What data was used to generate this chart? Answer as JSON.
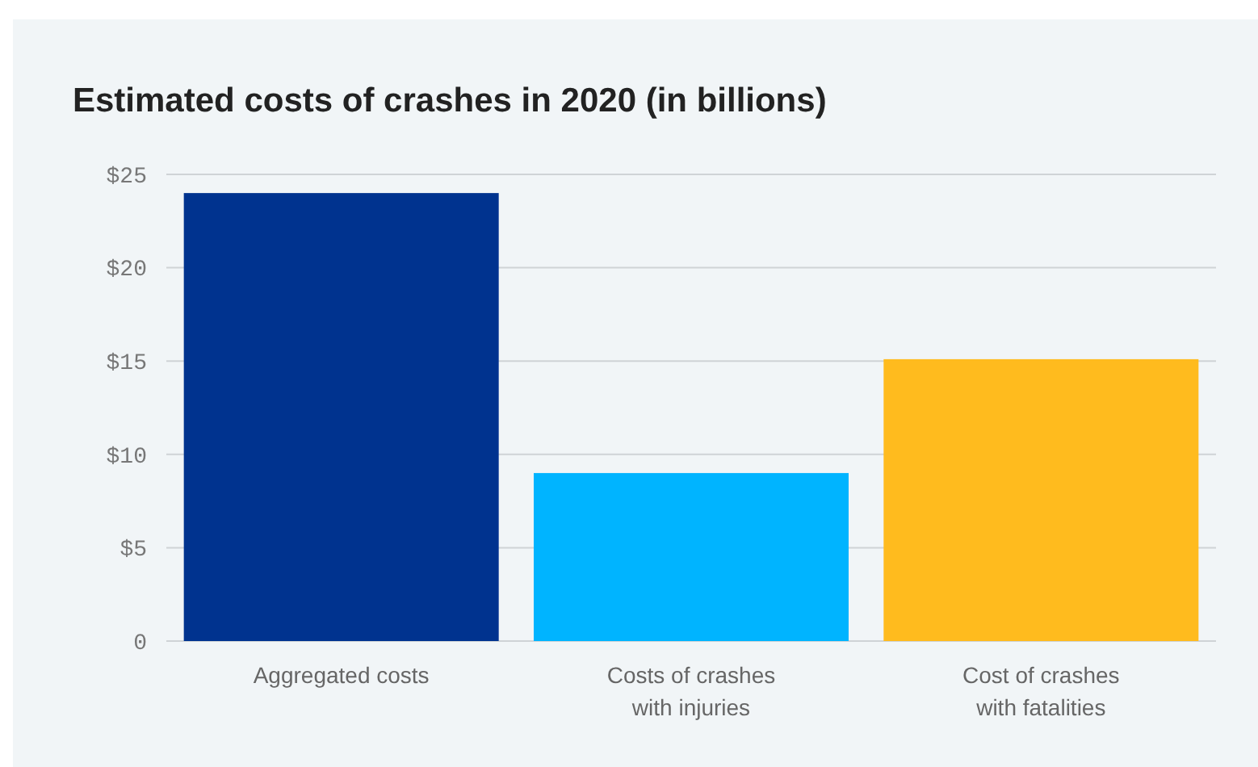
{
  "chart_data": {
    "type": "bar",
    "title": "Estimated costs of crashes in 2020 (in billions)",
    "categories": [
      "Aggregated costs",
      "Costs of crashes with injuries",
      "Cost of crashes with fatalities"
    ],
    "values": [
      24,
      9,
      15.1
    ],
    "colors": [
      "#00338f",
      "#00b4ff",
      "#ffbb1e"
    ],
    "ylim": [
      0,
      25
    ],
    "yticks": [
      0,
      {
        "value": 5,
        "label": "$5"
      },
      {
        "value": 10,
        "label": "$10"
      },
      {
        "value": 15,
        "label": "$15"
      },
      {
        "value": 20,
        "label": "$20"
      },
      {
        "value": 25,
        "label": "$25"
      }
    ],
    "grid": "y"
  }
}
